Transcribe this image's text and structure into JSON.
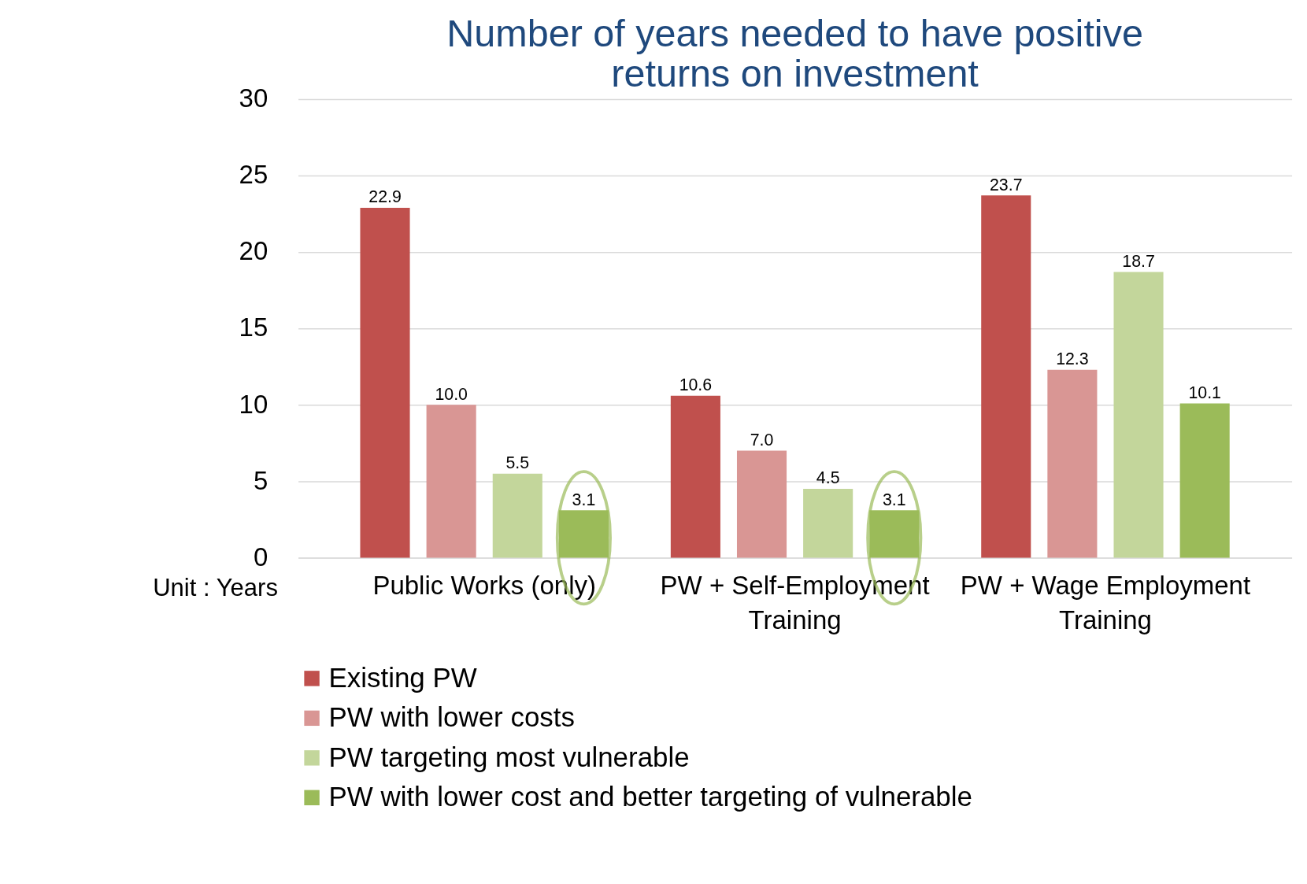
{
  "chart_data": {
    "type": "bar",
    "title": "Number of years needed to have positive returns on investment",
    "categories": [
      "Public Works (only)",
      "PW + Self-Employment Training",
      "PW + Wage Employment Training"
    ],
    "series": [
      {
        "name": "Existing PW",
        "color": "#c0504d",
        "values": [
          22.9,
          10.6,
          23.7
        ],
        "value_labels": [
          "22.9",
          "10.6",
          "23.7"
        ]
      },
      {
        "name": "PW with lower costs",
        "color": "#d99694",
        "values": [
          10,
          7,
          12.3
        ],
        "value_labels": [
          "10.0",
          "7.0",
          "12.3"
        ]
      },
      {
        "name": "PW targeting most vulnerable",
        "color": "#c3d69b",
        "values": [
          5.5,
          4.5,
          18.7
        ],
        "value_labels": [
          "5.5",
          "4.5",
          "18.7"
        ]
      },
      {
        "name": "PW with lower cost and better targeting of vulnerable",
        "color": "#9bbb59",
        "values": [
          3.1,
          3.1,
          10.1
        ],
        "value_labels": [
          "3.1",
          "3.1",
          "10.1"
        ]
      }
    ],
    "ylim": [
      0,
      30
    ],
    "yticks": [
      0,
      5,
      10,
      15,
      20,
      25,
      30
    ],
    "grid": "y",
    "legend": "bottom",
    "annotations": [
      "Unit : Years"
    ]
  }
}
